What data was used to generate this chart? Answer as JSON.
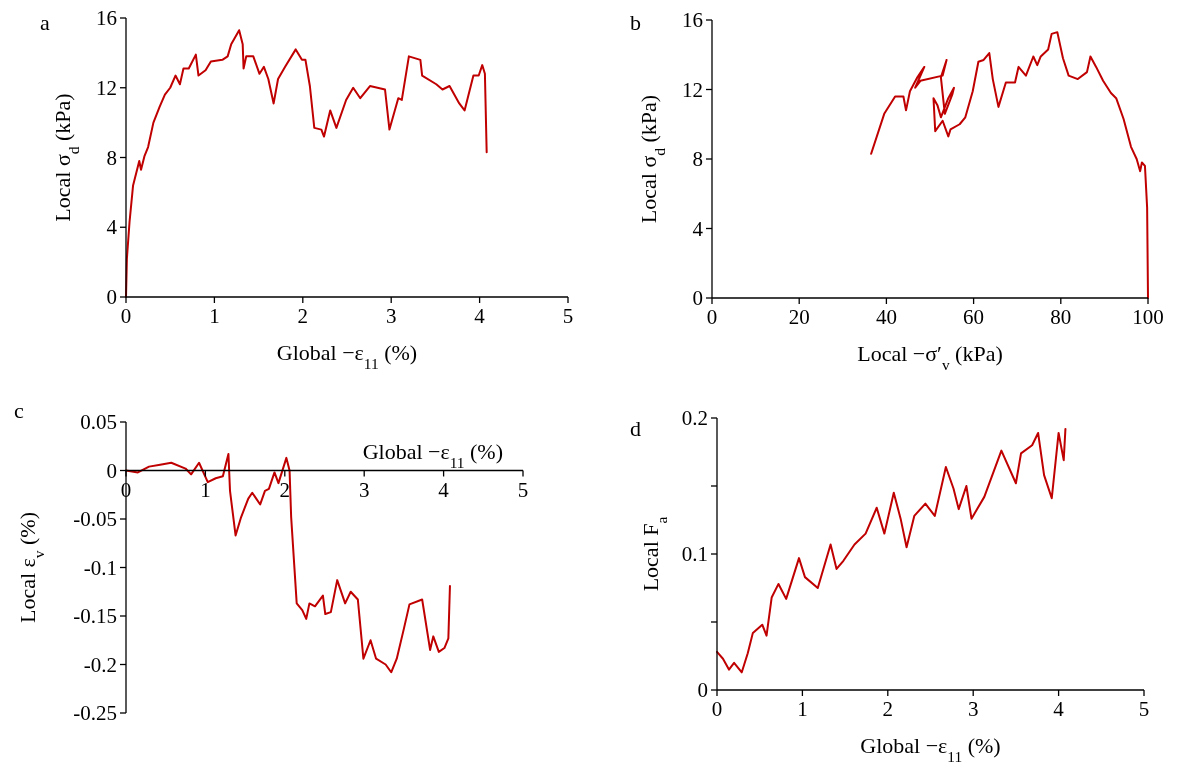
{
  "chart_data": [
    {
      "type": "line",
      "title": "a",
      "xlabel": "Global −ε$_{11}$ (%)",
      "ylabel": "Local σ$_{d}$ (kPa)",
      "xlim": [
        0,
        5
      ],
      "ylim": [
        0,
        16
      ],
      "xticks": [
        0,
        1,
        2,
        3,
        4,
        5
      ],
      "yticks": [
        0,
        4,
        8,
        12,
        16
      ],
      "series": [
        {
          "color": "#c00000",
          "x": [
            0,
            0.01,
            0.04,
            0.08,
            0.15,
            0.17,
            0.21,
            0.25,
            0.31,
            0.38,
            0.44,
            0.5,
            0.56,
            0.61,
            0.65,
            0.71,
            0.79,
            0.82,
            0.9,
            0.96,
            1.09,
            1.15,
            1.19,
            1.28,
            1.32,
            1.33,
            1.36,
            1.44,
            1.51,
            1.56,
            1.61,
            1.67,
            1.72,
            1.8,
            1.92,
            1.99,
            2.03,
            2.08,
            2.13,
            2.21,
            2.24,
            2.31,
            2.38,
            2.49,
            2.57,
            2.65,
            2.76,
            2.93,
            2.98,
            3.08,
            3.12,
            3.2,
            3.33,
            3.35,
            3.51,
            3.58,
            3.66,
            3.77,
            3.83,
            3.93,
            3.99,
            4.03,
            4.06,
            4.08
          ],
          "values": [
            0,
            2.2,
            4.3,
            6.4,
            7.8,
            7.3,
            8.1,
            8.6,
            10,
            10.9,
            11.6,
            12,
            12.7,
            12.2,
            13.1,
            13.1,
            13.9,
            12.7,
            13,
            13.5,
            13.6,
            13.8,
            14.5,
            15.3,
            14.5,
            13.1,
            13.8,
            13.8,
            12.8,
            13.2,
            12.5,
            11.1,
            12.5,
            13.2,
            14.2,
            13.6,
            13.6,
            12.1,
            9.7,
            9.6,
            9.2,
            10.7,
            9.7,
            11.3,
            12,
            11.4,
            12.1,
            11.9,
            9.6,
            11.4,
            11.3,
            13.8,
            13.6,
            12.7,
            12.2,
            11.9,
            12.1,
            11.1,
            10.7,
            12.7,
            12.7,
            13.3,
            12.8,
            8.3
          ]
        }
      ]
    },
    {
      "type": "line",
      "title": "b",
      "xlabel": "Local −σ′$_{v}$ (kPa)",
      "ylabel": "Local σ$_{d}$ (kPa)",
      "xlim": [
        0,
        100
      ],
      "ylim": [
        0,
        16
      ],
      "xticks": [
        0,
        20,
        40,
        60,
        80,
        100
      ],
      "yticks": [
        0,
        4,
        8,
        12,
        16
      ],
      "series": [
        {
          "color": "#c00000",
          "x": [
            100,
            99.8,
            99.3,
            98.6,
            98.2,
            97.4,
            96.1,
            94.4,
            92.7,
            91.5,
            89.7,
            88.1,
            86.8,
            86,
            83.9,
            81.8,
            80.5,
            79.2,
            77.9,
            77.1,
            75.4,
            74.6,
            73.7,
            72,
            70.3,
            69.5,
            67.4,
            65.7,
            64.4,
            63.6,
            62.3,
            61.1,
            59.8,
            58.1,
            56.8,
            54.7,
            54.2,
            52.9,
            51.2,
            50.8,
            51.7,
            52.5,
            54.2,
            55.5,
            55.1,
            53.4,
            52.5,
            53.8,
            52.9,
            47.8,
            46.6,
            48.7,
            47.1,
            45.4,
            44.5,
            43.9,
            42,
            39.5,
            36.5
          ],
          "values": [
            0,
            5.2,
            7.6,
            7.8,
            7.3,
            8,
            8.7,
            10.3,
            11.5,
            11.8,
            12.5,
            13.3,
            13.9,
            13,
            12.6,
            12.8,
            13.8,
            15.3,
            15.2,
            14.3,
            13.9,
            13.4,
            13.9,
            12.8,
            13.3,
            12.4,
            12.4,
            11,
            12.6,
            14.1,
            13.7,
            13.6,
            11.9,
            10.4,
            10,
            9.7,
            9.3,
            10.2,
            9.6,
            11.5,
            11.1,
            10.4,
            11.5,
            12.1,
            11.7,
            10.6,
            12.7,
            13.7,
            12.8,
            12.5,
            12.1,
            13.3,
            12.7,
            11.9,
            10.8,
            11.6,
            11.6,
            10.6,
            8.3
          ]
        }
      ]
    },
    {
      "type": "line",
      "title": "c",
      "xlabel": "Global −ε$_{11}$ (%)",
      "ylabel": "Local ε$_{v}$ (%)",
      "xlim": [
        0,
        5
      ],
      "ylim": [
        -0.25,
        0.05
      ],
      "xticks": [
        0,
        1,
        2,
        3,
        4,
        5
      ],
      "yticks": [
        -0.25,
        -0.2,
        -0.15,
        -0.1,
        -0.05,
        0,
        0.05
      ],
      "series": [
        {
          "color": "#c00000",
          "x": [
            0,
            0.15,
            0.29,
            0.43,
            0.57,
            0.75,
            0.82,
            0.92,
            1.03,
            1.13,
            1.22,
            1.29,
            1.31,
            1.38,
            1.45,
            1.54,
            1.59,
            1.64,
            1.69,
            1.75,
            1.8,
            1.87,
            1.92,
            2.02,
            2.06,
            2.08,
            2.15,
            2.22,
            2.27,
            2.31,
            2.38,
            2.48,
            2.51,
            2.58,
            2.66,
            2.76,
            2.83,
            2.92,
            2.99,
            3.08,
            3.15,
            3.27,
            3.34,
            3.41,
            3.5,
            3.57,
            3.73,
            3.83,
            3.87,
            3.94,
            4.01,
            4.06,
            4.08
          ],
          "values": [
            0,
            -0.002,
            0.004,
            0.006,
            0.008,
            0.002,
            -0.004,
            0.008,
            -0.012,
            -0.008,
            -0.006,
            0.017,
            -0.021,
            -0.067,
            -0.048,
            -0.029,
            -0.023,
            -0.029,
            -0.035,
            -0.021,
            -0.019,
            -0.002,
            -0.013,
            0.013,
            0,
            -0.048,
            -0.137,
            -0.144,
            -0.153,
            -0.137,
            -0.14,
            -0.129,
            -0.148,
            -0.146,
            -0.113,
            -0.137,
            -0.125,
            -0.133,
            -0.194,
            -0.175,
            -0.194,
            -0.2,
            -0.208,
            -0.194,
            -0.163,
            -0.138,
            -0.133,
            -0.185,
            -0.171,
            -0.187,
            -0.183,
            -0.173,
            -0.119
          ]
        }
      ]
    },
    {
      "type": "line",
      "title": "d",
      "xlabel": "Global −ε$_{11}$ (%)",
      "ylabel": "Local F$_{a}$",
      "xlim": [
        0,
        5
      ],
      "ylim": [
        0,
        0.2
      ],
      "xticks": [
        0,
        1,
        2,
        3,
        4,
        5
      ],
      "yticks": [
        0,
        {
          "value": 0.05,
          "label": null
        },
        0.1,
        {
          "value": 0.15,
          "label": null
        },
        0.2
      ],
      "series": [
        {
          "color": "#c00000",
          "x": [
            0,
            0.07,
            0.14,
            0.2,
            0.29,
            0.36,
            0.42,
            0.53,
            0.58,
            0.64,
            0.72,
            0.81,
            0.96,
            1.03,
            1.18,
            1.33,
            1.4,
            1.48,
            1.61,
            1.74,
            1.87,
            1.96,
            2.07,
            2.15,
            2.22,
            2.31,
            2.44,
            2.55,
            2.68,
            2.77,
            2.83,
            2.92,
            2.98,
            3.13,
            3.33,
            3.5,
            3.56,
            3.69,
            3.76,
            3.83,
            3.92,
            4,
            4.06,
            4.08
          ],
          "values": [
            0.028,
            0.023,
            0.015,
            0.02,
            0.013,
            0.027,
            0.042,
            0.048,
            0.04,
            0.068,
            0.078,
            0.067,
            0.097,
            0.083,
            0.075,
            0.107,
            0.089,
            0.095,
            0.107,
            0.115,
            0.134,
            0.115,
            0.145,
            0.126,
            0.105,
            0.128,
            0.137,
            0.128,
            0.164,
            0.148,
            0.133,
            0.15,
            0.126,
            0.142,
            0.176,
            0.152,
            0.174,
            0.18,
            0.189,
            0.158,
            0.141,
            0.189,
            0.169,
            0.192
          ]
        }
      ]
    }
  ]
}
